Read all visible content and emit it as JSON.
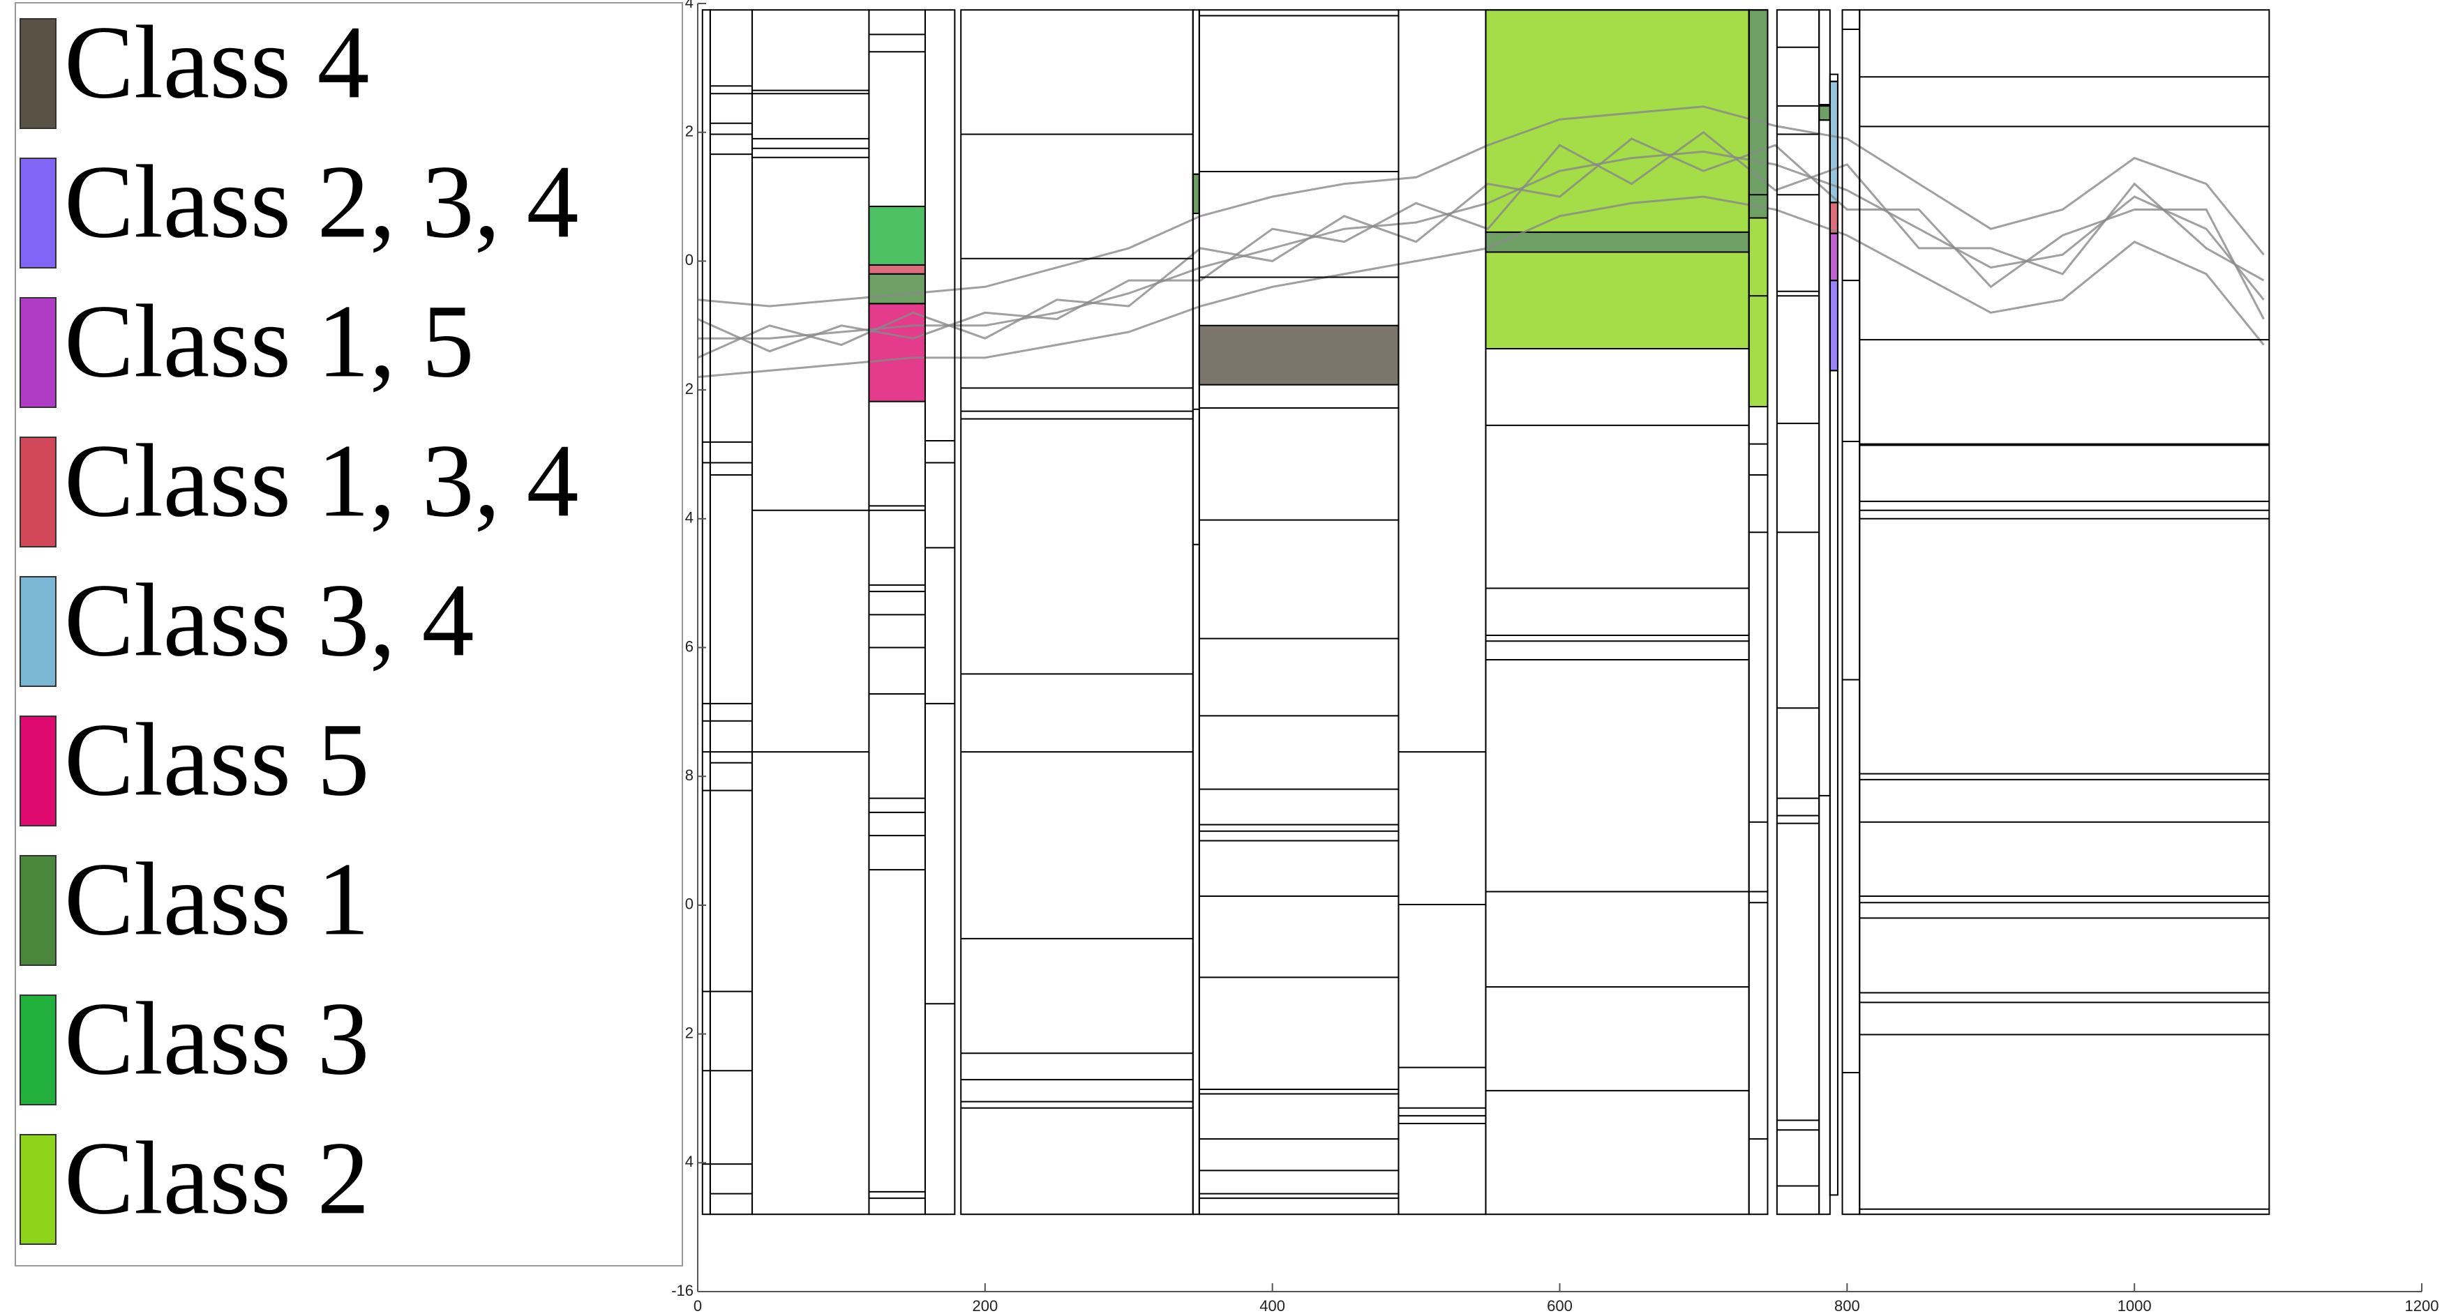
{
  "chart_data": {
    "type": "partition",
    "xlim": [
      0,
      1200
    ],
    "xticks": [
      0,
      200,
      400,
      600,
      800,
      1000,
      1200
    ],
    "ylim": [
      -16,
      4
    ],
    "yticks": [
      4,
      2,
      0,
      {
        "value": -2,
        "label": "2"
      },
      {
        "value": -4,
        "label": "4"
      },
      {
        "value": -6,
        "label": "6"
      },
      {
        "value": -8,
        "label": "8"
      },
      {
        "value": -10,
        "label": "0"
      },
      {
        "value": -12,
        "label": "2"
      },
      {
        "value": -14,
        "label": "4"
      },
      -16
    ],
    "box_opacity": 0.8,
    "curve_color": "#888888",
    "x": [
      0,
      50,
      100,
      150,
      200,
      250,
      300,
      350,
      400,
      450,
      500,
      550,
      600,
      650,
      700,
      750,
      800,
      850,
      900,
      950,
      1000,
      1050,
      1090
    ],
    "curves": [
      {
        "values": [
          -1.2,
          -1.2,
          -1.1,
          -1.0,
          -1.0,
          -0.8,
          -0.5,
          -0.1,
          0.2,
          0.5,
          0.6,
          0.9,
          1.4,
          1.6,
          1.7,
          1.5,
          1.1,
          0.5,
          -0.1,
          0.1,
          1.0,
          0.5,
          -0.6
        ]
      },
      {
        "values": [
          -0.6,
          -0.7,
          -0.6,
          -0.5,
          -0.4,
          -0.1,
          0.2,
          0.7,
          1.0,
          1.2,
          1.3,
          1.8,
          2.2,
          2.3,
          2.4,
          2.1,
          1.9,
          1.2,
          0.5,
          0.8,
          1.6,
          1.2,
          0.1
        ]
      },
      {
        "values": [
          -1.8,
          -1.7,
          -1.6,
          -1.5,
          -1.5,
          -1.3,
          -1.1,
          -0.7,
          -0.4,
          -0.2,
          0.0,
          0.2,
          0.7,
          0.9,
          1.0,
          0.8,
          0.4,
          -0.2,
          -0.8,
          -0.6,
          0.3,
          -0.2,
          -1.3
        ]
      },
      {
        "values": [
          -0.9,
          -1.4,
          -1.0,
          -1.2,
          -0.8,
          -0.9,
          -0.3,
          -0.3,
          0.5,
          0.3,
          0.9,
          0.5,
          1.8,
          1.2,
          2.0,
          1.1,
          1.5,
          0.2,
          0.2,
          -0.2,
          1.2,
          0.2,
          -0.3
        ]
      },
      {
        "values": [
          -1.5,
          -1.0,
          -1.3,
          -0.8,
          -1.2,
          -0.6,
          -0.7,
          0.2,
          0.0,
          0.7,
          0.3,
          1.2,
          1.0,
          1.9,
          1.4,
          1.8,
          0.8,
          0.8,
          -0.4,
          0.4,
          0.8,
          0.8,
          -0.9
        ]
      }
    ],
    "columns": [
      {
        "x": [
          3.3,
          8.7
        ],
        "y": [
          -14.8,
          3.9
        ],
        "splits": [
          -2.81,
          -3.13,
          -6.87,
          -7.14,
          -7.62,
          -8.22,
          -11.34,
          -12.57,
          -14.02
        ]
      },
      {
        "x": [
          8.7,
          37.9
        ],
        "y": [
          -14.8,
          3.9
        ],
        "splits": [
          2.72,
          2.6,
          2.14,
          1.97,
          1.66,
          -2.81,
          -3.13,
          -3.32,
          -6.87,
          -7.14,
          -7.62,
          -7.79,
          -8.22,
          -11.34,
          -12.57,
          -14.02,
          -14.48
        ]
      },
      {
        "x": [
          37.9,
          119.2
        ],
        "y": [
          -14.8,
          3.9
        ],
        "splits": [
          2.65,
          2.6,
          1.9,
          1.75,
          1.61,
          -3.87,
          -7.62
        ]
      },
      {
        "x": [
          119.2,
          158.3
        ],
        "y": [
          -14.8,
          3.9
        ],
        "splits": [
          3.52,
          3.25,
          -3.8,
          -3.87,
          -5.03,
          -5.13,
          -5.49,
          -6.0,
          -6.72,
          -8.34,
          -8.56,
          -8.92,
          -9.45,
          -14.45,
          -14.55
        ]
      },
      {
        "x": [
          158.3,
          178.9
        ],
        "y": [
          -14.8,
          3.9
        ],
        "splits": [
          -2.79,
          -3.13,
          -4.45,
          -6.87,
          -11.53
        ]
      },
      {
        "x": [
          183.2,
          344.7
        ],
        "y": [
          -14.8,
          3.9
        ],
        "splits": [
          1.97,
          0.04,
          -1.97,
          -2.33,
          -2.45,
          -6.41,
          -7.62,
          -10.52,
          -12.3,
          -12.71,
          -13.05,
          -13.15
        ]
      },
      {
        "x": [
          344.7,
          349.1
        ],
        "y": [
          -14.8,
          3.9
        ],
        "splits": [
          1.35,
          -2.3,
          -4.4
        ]
      },
      {
        "x": [
          349.1,
          487.8
        ],
        "y": [
          -14.8,
          3.9
        ],
        "splits": [
          3.81,
          1.39,
          -0.25,
          -2.28,
          -4.02,
          -5.86,
          -7.06,
          -8.2,
          -8.75,
          -8.85,
          -9.0,
          -9.86,
          -11.12,
          -12.86,
          -12.93,
          -13.63,
          -14.12,
          -14.48,
          -14.55
        ]
      },
      {
        "x": [
          487.8,
          548.5
        ],
        "y": [
          -14.8,
          3.9
        ],
        "splits": [
          -7.62,
          -9.99,
          -12.52,
          -13.15,
          -13.27,
          -13.39
        ]
      },
      {
        "x": [
          548.5,
          731.7
        ],
        "y": [
          -14.8,
          3.9
        ],
        "splits": [
          -2.55,
          -5.08,
          -5.81,
          -5.9,
          -6.19,
          -9.79,
          -11.27,
          -12.88
        ]
      },
      {
        "x": [
          731.7,
          744.7
        ],
        "y": [
          -14.8,
          3.9
        ],
        "splits": [
          1.03,
          -0.54,
          -2.84,
          -3.32,
          -4.21,
          -8.71,
          -9.79,
          -9.96,
          -13.63
        ]
      },
      {
        "x": [
          751.2,
          780.5
        ],
        "y": [
          -14.8,
          3.9
        ],
        "splits": [
          3.32,
          2.41,
          1.97,
          1.03,
          -0.47,
          -0.54,
          -2.52,
          -4.21,
          -6.94,
          -8.34,
          -8.61,
          -8.73,
          -13.34,
          -13.49,
          -14.36
        ]
      },
      {
        "x": [
          780.5,
          788.1
        ],
        "y": [
          -14.8,
          3.9
        ],
        "splits": [
          2.41,
          2.19,
          -8.3
        ]
      },
      {
        "x": [
          788.1,
          793.5
        ],
        "y": [
          -14.5,
          2.9
        ],
        "splits": [
          2.79,
          0.91,
          0.43,
          -0.3,
          -1.7
        ]
      },
      {
        "x": [
          796.7,
          808.7
        ],
        "y": [
          -14.8,
          3.9
        ],
        "splits": [
          3.6,
          -0.3,
          -2.8,
          -6.5,
          -12.6
        ]
      },
      {
        "x": [
          808.7,
          1093.8
        ],
        "y": [
          -14.8,
          3.9
        ],
        "splits": [
          2.86,
          2.09,
          -1.22,
          -2.84,
          -2.86,
          -3.73,
          -3.87,
          -4.0,
          -7.96,
          -8.05,
          -8.71,
          -9.86,
          -9.96,
          -10.2,
          -11.36,
          -11.51,
          -12.01,
          -14.72
        ]
      }
    ],
    "series": [
      {
        "name": "Class 4",
        "color": "#5b5246",
        "boxes": [
          {
            "x": [
              349.1,
              487.8
            ],
            "y": [
              -1.92,
              -1.0
            ]
          }
        ]
      },
      {
        "name": "Class 2, 3, 4",
        "color": "#8066f6",
        "boxes": [
          {
            "x": [
              788.1,
              793.5
            ],
            "y": [
              -1.7,
              -0.3
            ]
          }
        ]
      },
      {
        "name": "Class 1, 5",
        "color": "#b03cc6",
        "boxes": [
          {
            "x": [
              788.1,
              793.5
            ],
            "y": [
              -0.3,
              0.43
            ]
          }
        ]
      },
      {
        "name": "Class 1, 3, 4",
        "color": "#d34858",
        "boxes": [
          {
            "x": [
              119.2,
              158.3
            ],
            "y": [
              -0.2,
              -0.06
            ]
          },
          {
            "x": [
              788.1,
              793.5
            ],
            "y": [
              0.43,
              0.91
            ]
          }
        ]
      },
      {
        "name": "Class 3, 4",
        "color": "#7ab7d5",
        "boxes": [
          {
            "x": [
              788.1,
              793.5
            ],
            "y": [
              0.91,
              2.79
            ]
          }
        ]
      },
      {
        "name": "Class 5",
        "color": "#de0a6f",
        "boxes": [
          {
            "x": [
              119.2,
              158.3
            ],
            "y": [
              -2.18,
              -0.66
            ]
          }
        ]
      },
      {
        "name": "Class 1",
        "color": "#4a873d",
        "boxes": [
          {
            "x": [
              119.2,
              158.3
            ],
            "y": [
              -0.66,
              -0.2
            ]
          },
          {
            "x": [
              548.5,
              731.7
            ],
            "y": [
              0.14,
              0.45
            ]
          },
          {
            "x": [
              731.7,
              744.7
            ],
            "y": [
              0.67,
              3.9
            ]
          },
          {
            "x": [
              344.7,
              349.1
            ],
            "y": [
              0.74,
              1.35
            ]
          },
          {
            "x": [
              780.5,
              788.1
            ],
            "y": [
              2.19,
              2.43
            ]
          }
        ]
      },
      {
        "name": "Class 3",
        "color": "#22b03d",
        "boxes": [
          {
            "x": [
              119.2,
              158.3
            ],
            "y": [
              -0.06,
              0.85
            ]
          }
        ]
      },
      {
        "name": "Class 2",
        "color": "#8ed41a",
        "boxes": [
          {
            "x": [
              548.5,
              731.7
            ],
            "y": [
              0.45,
              3.9
            ]
          },
          {
            "x": [
              548.5,
              731.7
            ],
            "y": [
              -1.36,
              0.14
            ]
          },
          {
            "x": [
              731.7,
              744.7
            ],
            "y": [
              -2.26,
              0.67
            ]
          }
        ]
      }
    ]
  }
}
